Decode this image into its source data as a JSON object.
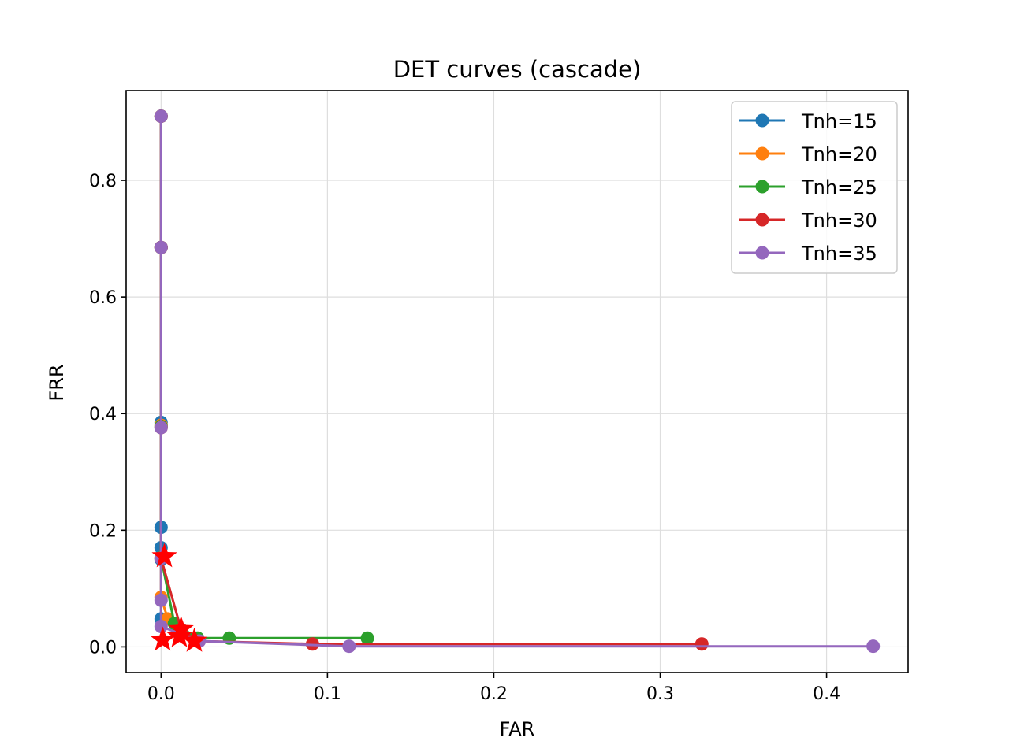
{
  "chart_data": {
    "type": "line",
    "title": "DET curves (cascade)",
    "xlabel": "FAR",
    "ylabel": "FRR",
    "xlim": [
      -0.021,
      0.449
    ],
    "ylim": [
      -0.044,
      0.954
    ],
    "xticks": [
      0.0,
      0.1,
      0.2,
      0.3,
      0.4
    ],
    "xtick_labels": [
      "0.0",
      "0.1",
      "0.2",
      "0.3",
      "0.4"
    ],
    "yticks": [
      0.0,
      0.2,
      0.4,
      0.6,
      0.8
    ],
    "ytick_labels": [
      "0.0",
      "0.2",
      "0.4",
      "0.6",
      "0.8"
    ],
    "grid": true,
    "legend_position": "top-right",
    "series": [
      {
        "name": "Tnh=15",
        "color": "#1f77b4",
        "x": [
          0.0,
          0.0,
          0.0,
          0.0,
          0.0,
          0.0,
          0.0
        ],
        "y": [
          0.91,
          0.685,
          0.385,
          0.205,
          0.17,
          0.15,
          0.048
        ]
      },
      {
        "name": "Tnh=20",
        "color": "#ff7f0e",
        "x": [
          0.0,
          0.0,
          0.0,
          0.0,
          0.0,
          0.004,
          0.01
        ],
        "y": [
          0.91,
          0.685,
          0.38,
          0.153,
          0.085,
          0.048,
          0.035
        ]
      },
      {
        "name": "Tnh=25",
        "color": "#2ca02c",
        "x": [
          0.0,
          0.0,
          0.0,
          0.0,
          0.008,
          0.022,
          0.041,
          0.124
        ],
        "y": [
          0.91,
          0.685,
          0.378,
          0.153,
          0.04,
          0.015,
          0.015,
          0.015
        ]
      },
      {
        "name": "Tnh=30",
        "color": "#d62728",
        "x": [
          0.0,
          0.0,
          0.0,
          0.0,
          0.012,
          0.022,
          0.091,
          0.325
        ],
        "y": [
          0.91,
          0.685,
          0.376,
          0.152,
          0.03,
          0.01,
          0.005,
          0.005
        ]
      },
      {
        "name": "Tnh=35",
        "color": "#9467bd",
        "x": [
          0.0,
          0.0,
          0.0,
          0.0,
          0.0,
          0.0,
          0.023,
          0.113,
          0.428
        ],
        "y": [
          0.91,
          0.685,
          0.376,
          0.152,
          0.08,
          0.035,
          0.01,
          0.001,
          0.001
        ]
      }
    ],
    "highlight_markers": {
      "marker": "star",
      "color": "#ff0000",
      "points": [
        {
          "x": 0.001,
          "y": 0.012
        },
        {
          "x": 0.012,
          "y": 0.03
        },
        {
          "x": 0.011,
          "y": 0.018
        },
        {
          "x": 0.02,
          "y": 0.01
        },
        {
          "x": 0.002,
          "y": 0.155
        }
      ]
    }
  }
}
